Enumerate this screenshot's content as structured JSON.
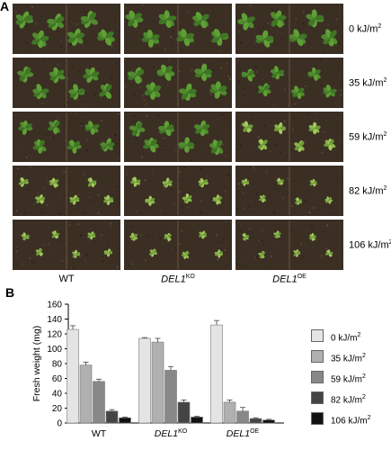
{
  "panel_a": {
    "letter": "A",
    "columns": [
      {
        "name": "WT",
        "superscript": "",
        "italic": false
      },
      {
        "name": "DEL1",
        "superscript": "KO",
        "italic": true
      },
      {
        "name": "DEL1",
        "superscript": "OE",
        "italic": true
      }
    ],
    "doses": [
      {
        "value": "0",
        "unit": "kJ/m",
        "exp": "2",
        "growth": 1.0
      },
      {
        "value": "35",
        "unit": "kJ/m",
        "exp": "2",
        "growth": 0.85
      },
      {
        "value": "59",
        "unit": "kJ/m",
        "exp": "2",
        "growth": 0.7
      },
      {
        "value": "82",
        "unit": "kJ/m",
        "exp": "2",
        "growth": 0.35
      },
      {
        "value": "106",
        "unit": "kJ/m",
        "exp": "2",
        "growth": 0.2
      }
    ]
  },
  "panel_b": {
    "letter": "B"
  },
  "chart_data": {
    "type": "bar",
    "ylabel": "Fresh weight (mg)",
    "ylim": [
      0,
      160
    ],
    "yticks": [
      0,
      20,
      40,
      60,
      80,
      100,
      120,
      140,
      160
    ],
    "categories": [
      {
        "name": "WT",
        "superscript": ""
      },
      {
        "name": "DEL1",
        "superscript": "KO"
      },
      {
        "name": "DEL1",
        "superscript": "OE"
      }
    ],
    "series": [
      {
        "name": "0 kJ/m",
        "exp": "2",
        "color": "#e4e4e4",
        "values": [
          126,
          114,
          132
        ],
        "errors": [
          5,
          1,
          6
        ]
      },
      {
        "name": "35 kJ/m",
        "exp": "2",
        "color": "#b0b0b0",
        "values": [
          78,
          109,
          28
        ],
        "errors": [
          4,
          5,
          3
        ]
      },
      {
        "name": "59 kJ/m",
        "exp": "2",
        "color": "#888888",
        "values": [
          56,
          71,
          16
        ],
        "errors": [
          3,
          5,
          5
        ]
      },
      {
        "name": "82 kJ/m",
        "exp": "2",
        "color": "#444444",
        "values": [
          16,
          28,
          6
        ],
        "errors": [
          2,
          3,
          1
        ]
      },
      {
        "name": "106 kJ/m",
        "exp": "2",
        "color": "#111111",
        "values": [
          7,
          8,
          4
        ],
        "errors": [
          1,
          1,
          1
        ]
      }
    ],
    "grid": false,
    "legend": "right"
  }
}
